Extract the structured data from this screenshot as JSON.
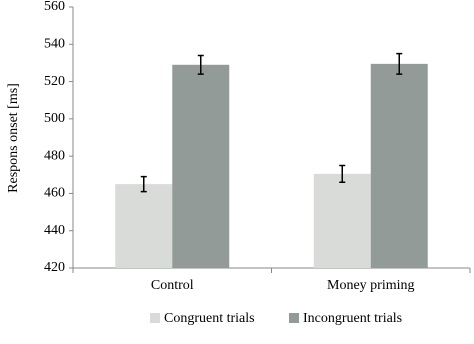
{
  "chart_data": {
    "type": "bar",
    "y_label": "Respons onset [ms]",
    "categories": [
      "Control",
      "Money priming"
    ],
    "series": [
      {
        "name": "Congruent trials",
        "color": "#d9dbd9",
        "values": [
          465,
          470.5
        ],
        "errors": [
          4,
          4.5
        ]
      },
      {
        "name": "Incongruent trials",
        "color": "#939b99",
        "values": [
          529,
          529.5
        ],
        "errors": [
          5,
          5.5
        ]
      }
    ],
    "ylim": [
      420,
      560
    ],
    "yticks": [
      420,
      440,
      460,
      480,
      500,
      520,
      540,
      560
    ],
    "grid": false,
    "legend": "bottom"
  }
}
